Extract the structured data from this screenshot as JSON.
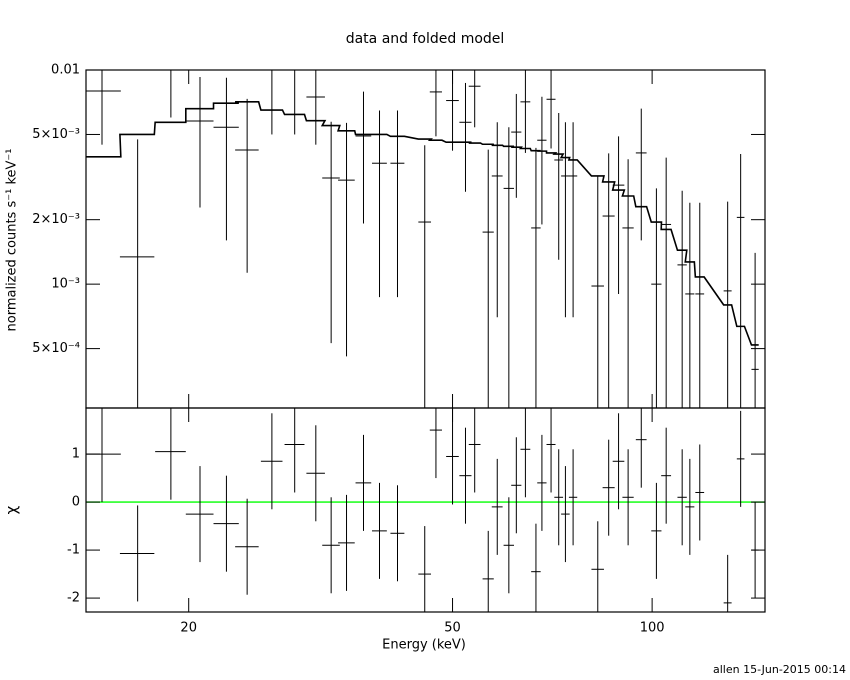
{
  "footer": "allen 15-Jun-2015 00:14",
  "chart_data": [
    {
      "type": "spectrum",
      "title": "data and folded model",
      "ylabel": "normalized counts s⁻¹ keV⁻¹",
      "log_x": true,
      "log_y": true,
      "xlim": [
        14,
        148
      ],
      "ylim": [
        0.000264,
        0.01
      ],
      "yticks": [
        0.01,
        {
          "value": 0.005,
          "label": "5×10⁻³"
        },
        {
          "value": 0.002,
          "label": "2×10⁻³"
        },
        {
          "value": 0.001,
          "label": "10⁻³"
        },
        {
          "value": 0.0005,
          "label": "5×10⁻⁴"
        }
      ],
      "x": [
        14.8,
        16.75,
        18.8,
        20.8,
        22.8,
        24.5,
        26.7,
        28.9,
        31.1,
        32.8,
        34.6,
        36.7,
        38.8,
        41.3,
        45.4,
        47.2,
        50,
        52.3,
        54,
        56.6,
        58.4,
        60.8,
        62.4,
        64.4,
        66.8,
        68.2,
        70.4,
        72.3,
        74,
        76,
        82.8,
        86,
        89,
        92,
        96.3,
        101.5,
        105,
        111,
        114,
        118,
        130,
        136,
        143
      ],
      "xerr": [
        1,
        1,
        1,
        1,
        1,
        1,
        1,
        1,
        1,
        1,
        1,
        1,
        1,
        1,
        1,
        1,
        1.1,
        1.1,
        1.1,
        1.1,
        1.1,
        1.1,
        1.1,
        1.1,
        1.1,
        1.1,
        1.1,
        1.1,
        1.1,
        1.1,
        1.8,
        1.8,
        1.8,
        1.8,
        1.8,
        1.8,
        1.8,
        1.8,
        1.8,
        1.8,
        1.8,
        1.8,
        1.8
      ],
      "values": [
        0.00798,
        0.00134,
        0.01,
        0.00578,
        0.0054,
        0.00423,
        0.01,
        0.01,
        0.00748,
        0.00313,
        0.00306,
        0.00492,
        0.00367,
        0.00367,
        0.00195,
        0.0079,
        0.0072,
        0.0057,
        0.0084,
        0.00175,
        0.0032,
        0.0028,
        0.00513,
        0.0071,
        0.00183,
        0.0047,
        0.0073,
        0.0038,
        0.0032,
        0.0032,
        0.00098,
        0.00208,
        0.0029,
        0.00183,
        0.0041,
        0.001,
        0.0019,
        0.00123,
        0.0009,
        0.0009,
        0.00093,
        0.00205,
        0.0004
      ],
      "errors": [
        0.0035,
        0.0034,
        0.004,
        0.0035,
        0.0038,
        0.0031,
        0.005,
        0.005,
        0.003,
        0.0026,
        0.0026,
        0.003,
        0.0028,
        0.0028,
        0.0025,
        0.003,
        0.003,
        0.003,
        0.003,
        0.0025,
        0.0025,
        0.0026,
        0.0026,
        0.003,
        0.0025,
        0.0028,
        0.003,
        0.0025,
        0.0025,
        0.0025,
        0.0022,
        0.002,
        0.002,
        0.002,
        0.0025,
        0.0018,
        0.002,
        0.0015,
        0.0015,
        0.0015,
        0.0015,
        0.002,
        0.001
      ],
      "model": [
        0.00393,
        0.005,
        0.0057,
        0.0066,
        0.007,
        0.0071,
        0.0065,
        0.0062,
        0.0058,
        0.0055,
        0.0052,
        0.005,
        0.005,
        0.0049,
        0.00476,
        0.0047,
        0.0046,
        0.0046,
        0.00456,
        0.0045,
        0.00445,
        0.0044,
        0.00436,
        0.0043,
        0.0042,
        0.00418,
        0.0041,
        0.00405,
        0.0039,
        0.0038,
        0.0032,
        0.003,
        0.00275,
        0.00258,
        0.0023,
        0.00195,
        0.0018,
        0.00144,
        0.00127,
        0.00108,
        0.0008,
        0.000635,
        0.00052
      ]
    },
    {
      "type": "residual",
      "xlabel": "Energy (keV)",
      "ylabel": "χ",
      "log_x": true,
      "xlim": [
        14,
        148
      ],
      "ylim": [
        -2.29,
        1.96
      ],
      "xticks": [
        20,
        50,
        100
      ],
      "yticks": [
        -2,
        -1,
        0,
        1
      ],
      "reference_line": {
        "value": 0,
        "color": "#00ff00"
      },
      "x": [
        14.8,
        16.75,
        18.8,
        20.8,
        22.8,
        24.5,
        26.7,
        28.9,
        31.1,
        32.8,
        34.6,
        36.7,
        38.8,
        41.3,
        45.4,
        47.2,
        50,
        52.3,
        54,
        56.6,
        58.4,
        60.8,
        62.4,
        64.4,
        66.8,
        68.2,
        70.4,
        72.3,
        74,
        76,
        82.8,
        86,
        89,
        92,
        96.3,
        101.5,
        105,
        111,
        114,
        118,
        130,
        136,
        143
      ],
      "xerr": [
        1,
        1,
        1,
        1,
        1,
        1,
        1,
        1,
        1,
        1,
        1,
        1,
        1,
        1,
        1,
        1,
        1.1,
        1.1,
        1.1,
        1.1,
        1.1,
        1.1,
        1.1,
        1.1,
        1.1,
        1.1,
        1.1,
        1.1,
        1.1,
        1.1,
        1.8,
        1.8,
        1.8,
        1.8,
        1.8,
        1.8,
        1.8,
        1.8,
        1.8,
        1.8,
        1.8,
        1.8,
        1.8
      ],
      "values": [
        1.0,
        -1.07,
        1.05,
        -0.25,
        -0.45,
        -0.93,
        0.85,
        1.2,
        0.6,
        -0.9,
        -0.85,
        0.4,
        -0.6,
        -0.65,
        -1.5,
        1.5,
        0.95,
        0.55,
        1.2,
        -1.6,
        -0.1,
        -0.9,
        0.35,
        1.1,
        -1.45,
        0.4,
        1.2,
        0.1,
        -0.25,
        0.1,
        -1.4,
        0.3,
        0.85,
        0.1,
        1.3,
        -0.6,
        0.55,
        0.1,
        -0.1,
        0.2,
        -2.1,
        0.9,
        -1.0
      ],
      "errors": [
        1,
        1,
        1,
        1,
        1,
        1,
        1,
        1,
        1,
        1,
        1,
        1,
        1,
        1,
        1,
        1,
        1,
        1,
        1,
        1,
        1,
        1,
        1,
        1,
        1,
        1,
        1,
        1,
        1,
        1,
        1,
        1,
        1,
        1,
        1,
        1,
        1,
        1,
        1,
        1,
        1,
        1,
        1
      ]
    }
  ]
}
